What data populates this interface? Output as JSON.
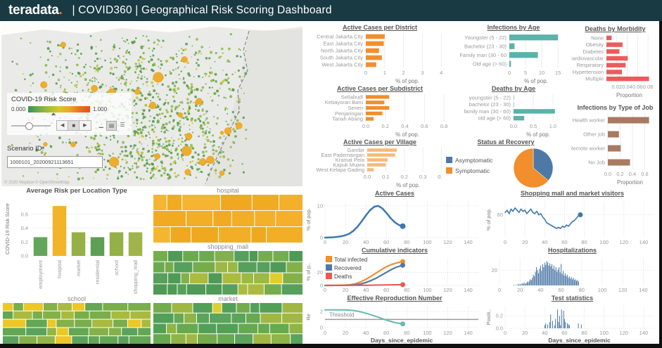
{
  "header": {
    "logo": "teradata",
    "logo_dot": ".",
    "title": "| COVID360 | Geographical Risk Scoring Dashboard"
  },
  "map": {
    "legend_title": "COVID-19 Risk Score",
    "legend_min": "0.000",
    "legend_max": "1.000",
    "scenario_label": "Scenario ID:",
    "scenario_value": "1000101_20200921113651",
    "attribution": "© 2020 Mapbox © OpenStreetMap",
    "controls": {
      "prev": "◀",
      "stop": "■",
      "next": "▶",
      "view_small": "▁",
      "view_medium": "▤",
      "view_large": "☰"
    },
    "colors": {
      "dot_green": "#5aa04c",
      "dot_hotspot": "#f0ac28"
    }
  },
  "chart_data": [
    {
      "type": "hbar",
      "title": "Active Cases per District",
      "xlabel": "% of pop.",
      "color": "#f28e2b",
      "xmax": 4.4,
      "xticks": [
        0,
        1,
        2,
        3,
        4
      ],
      "xtick_labels": [
        "0",
        "1",
        "2",
        "3",
        "4"
      ],
      "categories": [
        "Central Jakarta City",
        "East Jakarta City",
        "North Jakarta City",
        "South Jakarta City",
        "West Jakarta City"
      ],
      "values": [
        1.0,
        0.95,
        0.7,
        0.85,
        0.55
      ]
    },
    {
      "type": "hbar",
      "title": "Infections by Age",
      "xlabel": "% of pop.",
      "color": "#59b3ab",
      "xmax": 16.5,
      "xticks": [
        0,
        5,
        10,
        15
      ],
      "xtick_labels": [
        "0",
        "5",
        "10",
        "15"
      ],
      "categories": [
        "Youngster (5 - 22)",
        "Bachelor (23 - 30)",
        "Family man (30 - 60",
        "Old age (> 60)"
      ],
      "values": [
        15,
        1.6,
        8.8,
        0.5
      ]
    },
    {
      "type": "hbar",
      "title": "Deaths by Morbidity",
      "xlabel": "Proportion",
      "color": "#ec5b5b",
      "xmax": 0.088,
      "xticks": [
        0.02,
        0.04,
        0.06,
        0.08
      ],
      "xtick_labels": [
        "0.02",
        "0.04",
        "0.06",
        "0.08"
      ],
      "categories": [
        "None",
        "Obesity",
        "Diabetes",
        "Cardiovascular",
        "Respiratory",
        "Hypertension",
        "Multiple"
      ],
      "values": [
        0.01,
        0.031,
        0.025,
        0.041,
        0.037,
        0.03,
        0.082
      ]
    },
    {
      "type": "hbar",
      "title": "Active Cases per Subdistrict",
      "xlabel": "% of pop.",
      "color": "#f28e2b",
      "xmax": 0.85,
      "xticks": [
        0,
        0.2,
        0.4,
        0.6,
        0.8
      ],
      "xtick_labels": [
        "0.0",
        "0.2",
        "0.4",
        "0.6",
        "0.8"
      ],
      "categories": [
        "Setiabudi",
        "Kebayoran Baru",
        "Senen",
        "Penjaringan",
        "Tanah Abang"
      ],
      "values": [
        0.24,
        0.19,
        0.24,
        0.17,
        0.08
      ]
    },
    {
      "type": "hbar",
      "title": "Deaths by Age",
      "xlabel": "% of pop.",
      "color": "#59b3ab",
      "xmax": 1.25,
      "xticks": [
        0,
        0.5,
        1.0
      ],
      "xtick_labels": [
        "0.0",
        "0.5",
        "1.0"
      ],
      "categories": [
        "youngster (5 - 22)",
        "bachelor (23 - 30)",
        "family man (30 - 60)",
        "old age (> 60)"
      ],
      "values": [
        0.005,
        0.01,
        1.05,
        0.27
      ]
    },
    {
      "type": "hbar",
      "title": "Infections by Type of Job",
      "xlabel": "Proportion",
      "color": "#a87a61",
      "xmax": 0.72,
      "xticks": [
        0,
        0.2,
        0.4,
        0.6
      ],
      "xtick_labels": [
        "0.0",
        "0.2",
        "0.4",
        "0.6"
      ],
      "categories": [
        "Health worker",
        "Other job",
        "Remote worker",
        "No Job"
      ],
      "values": [
        0.67,
        0.18,
        0.21,
        0.36
      ]
    },
    {
      "type": "hbar",
      "title": "Active Cases per Village",
      "xlabel": "% of pop.",
      "color": "#f9b97a",
      "xmax": 0.44,
      "xticks": [
        0,
        0.1,
        0.2,
        0.3,
        0.4
      ],
      "xtick_labels": [
        "0.0",
        "0.1",
        "0.2",
        "0.3",
        "0.4"
      ],
      "categories": [
        "Gambir",
        "East Pademangan",
        "Kramat Pela",
        "Kapuk Muara",
        "West Kelapa Gading"
      ],
      "values": [
        0.16,
        0.15,
        0.11,
        0.1,
        0.035
      ]
    },
    {
      "type": "pie",
      "title": "Status at Recovery",
      "slices": [
        {
          "label": "Asymptomatic",
          "value": 36,
          "color": "#4e79a7"
        },
        {
          "label": "Symptomatic",
          "value": 64,
          "color": "#f28e2b"
        }
      ]
    },
    {
      "type": "vbar",
      "title": "Average Risk per Location Type",
      "ylabel": "COVID-19 Risk Score",
      "ymax": 0.78,
      "yticks": [
        0,
        0.2,
        0.4,
        0.6
      ],
      "ytick_labels": [
        "0.0",
        "0.2",
        "0.4",
        "0.6"
      ],
      "categories": [
        "employment",
        "hospital",
        "market",
        "residential",
        "school",
        "shopping_mall"
      ],
      "values": [
        0.27,
        0.72,
        0.34,
        0.27,
        0.34,
        0.34
      ],
      "colors": [
        "#64a55c",
        "#f2b52a",
        "#94b047",
        "#5f9f55",
        "#94b047",
        "#9fb44a"
      ]
    },
    {
      "type": "treemap",
      "title": "hospital",
      "rows": 3,
      "cols": 6,
      "accent_chance": 0,
      "palette": [
        "#f4b02a",
        "#f1ab23",
        "#f6b530",
        "#efa81f",
        "#f3ae27"
      ],
      "accent": "#f4b02a"
    },
    {
      "type": "treemap",
      "title": "shopping_mall",
      "rows": 4,
      "cols": 10,
      "accent_chance": 0.02,
      "palette": [
        "#57a05b",
        "#6cab4d",
        "#83b149",
        "#9cb845",
        "#4f9a55",
        "#76ad4b",
        "#abbb40"
      ],
      "accent": "#e2ce2b"
    },
    {
      "type": "treemap",
      "title": "school",
      "rows": 5,
      "cols": 9,
      "accent_chance": 0.13,
      "palette": [
        "#5ba35a",
        "#79ae4b",
        "#92b547",
        "#63a754",
        "#a9ba41",
        "#85b149"
      ],
      "accent": "#ecc726"
    },
    {
      "type": "treemap",
      "title": "market",
      "rows": 4,
      "cols": 9,
      "accent_chance": 0.05,
      "palette": [
        "#5aa45c",
        "#74ac4c",
        "#8fb447",
        "#a0b843",
        "#52a057",
        "#67a951"
      ],
      "accent": "#ddd02e"
    },
    {
      "type": "line",
      "title": "Active Cases",
      "ylabel": "% of pop.",
      "ymin": 0,
      "ymax": 11.5,
      "xmax": 150,
      "xticks": [
        0,
        20,
        40,
        60,
        80,
        100,
        120,
        140
      ],
      "yticks": [
        0,
        10
      ],
      "ytick_labels": [
        "0",
        "10"
      ],
      "series": [
        {
          "name": "Active",
          "color": "#3b77b0",
          "width": 2.5,
          "end_dot": true,
          "dot_r": 4,
          "points": [
            [
              0,
              0
            ],
            [
              4,
              0.05
            ],
            [
              8,
              0.12
            ],
            [
              12,
              0.25
            ],
            [
              16,
              0.45
            ],
            [
              20,
              0.75
            ],
            [
              24,
              1.3
            ],
            [
              28,
              2.2
            ],
            [
              32,
              3.5
            ],
            [
              36,
              5.2
            ],
            [
              40,
              7.0
            ],
            [
              44,
              8.6
            ],
            [
              48,
              9.7
            ],
            [
              52,
              10.0
            ],
            [
              56,
              9.2
            ],
            [
              60,
              7.8
            ],
            [
              64,
              6.2
            ],
            [
              68,
              4.9
            ],
            [
              72,
              4.0
            ],
            [
              76,
              3.6
            ]
          ]
        }
      ]
    },
    {
      "type": "line",
      "title": "Shopping mall and market visitors",
      "ylabel": "% of pop.",
      "ymin": 40,
      "ymax": 72,
      "xmax": 150,
      "xticks": [
        0,
        20,
        40,
        60,
        80,
        100,
        120,
        140
      ],
      "yticks": [
        60
      ],
      "ytick_labels": [
        "60"
      ],
      "series": [
        {
          "name": "Visitors",
          "color": "#3b77b0",
          "width": 1.6,
          "end_dot": true,
          "dot_r": 3.5,
          "points": [
            [
              0,
              62
            ],
            [
              2,
              64
            ],
            [
              4,
              61
            ],
            [
              6,
              65
            ],
            [
              8,
              63
            ],
            [
              10,
              66
            ],
            [
              12,
              64
            ],
            [
              14,
              62
            ],
            [
              16,
              65
            ],
            [
              18,
              63
            ],
            [
              20,
              64
            ],
            [
              22,
              61
            ],
            [
              24,
              63
            ],
            [
              26,
              65
            ],
            [
              28,
              62
            ],
            [
              30,
              61
            ],
            [
              32,
              63
            ],
            [
              34,
              60
            ],
            [
              36,
              61
            ],
            [
              38,
              58
            ],
            [
              40,
              56
            ],
            [
              42,
              53
            ],
            [
              44,
              52
            ],
            [
              46,
              51
            ],
            [
              48,
              50
            ],
            [
              50,
              49
            ],
            [
              52,
              48
            ],
            [
              54,
              49
            ],
            [
              56,
              48
            ],
            [
              58,
              50
            ],
            [
              60,
              49
            ],
            [
              62,
              51
            ],
            [
              64,
              50
            ],
            [
              66,
              52
            ],
            [
              68,
              54
            ],
            [
              70,
              55
            ],
            [
              72,
              57
            ],
            [
              74,
              59
            ],
            [
              76,
              60
            ]
          ]
        }
      ]
    },
    {
      "type": "line",
      "title": "Cumulative indicators",
      "ylabel": "% of p..",
      "ymin": 0,
      "ymax": 42,
      "xmax": 150,
      "legend": true,
      "xticks": [
        0,
        20,
        40,
        60,
        80,
        100,
        120,
        140
      ],
      "yticks": [
        0,
        20
      ],
      "ytick_labels": [
        "0",
        "20"
      ],
      "series": [
        {
          "name": "Total infected",
          "color": "#f28e2b",
          "width": 2.2,
          "end_dot": true,
          "dot_r": 3.5,
          "points": [
            [
              0,
              0
            ],
            [
              10,
              0.1
            ],
            [
              20,
              0.5
            ],
            [
              25,
              1.2
            ],
            [
              30,
              2.8
            ],
            [
              35,
              5.5
            ],
            [
              40,
              9.5
            ],
            [
              45,
              14
            ],
            [
              50,
              19
            ],
            [
              55,
              24
            ],
            [
              60,
              28.5
            ],
            [
              65,
              32
            ],
            [
              70,
              34.5
            ],
            [
              76,
              36.5
            ]
          ]
        },
        {
          "name": "Recovered",
          "color": "#4e79a7",
          "width": 2.2,
          "end_dot": true,
          "dot_r": 3.5,
          "points": [
            [
              0,
              0
            ],
            [
              20,
              0.1
            ],
            [
              25,
              0.4
            ],
            [
              30,
              1.0
            ],
            [
              35,
              2.2
            ],
            [
              40,
              4.5
            ],
            [
              45,
              7.5
            ],
            [
              50,
              11
            ],
            [
              55,
              15.5
            ],
            [
              60,
              20
            ],
            [
              65,
              24.5
            ],
            [
              70,
              28
            ],
            [
              76,
              31
            ]
          ]
        },
        {
          "name": "Deaths",
          "color": "#ef5552",
          "width": 2,
          "end_dot": true,
          "dot_r": 3.5,
          "points": [
            [
              0,
              0
            ],
            [
              20,
              0.05
            ],
            [
              40,
              0.3
            ],
            [
              60,
              0.8
            ],
            [
              76,
              1.2
            ]
          ]
        }
      ]
    },
    {
      "type": "bars",
      "title": "Hospitalizations",
      "ymin": 0,
      "ymax": 36,
      "xmax": 150,
      "x_start": 14,
      "color": "#4e79a7",
      "xticks": [
        0,
        20,
        40,
        60,
        80,
        100,
        120,
        140
      ],
      "yticks": [
        20
      ],
      "ytick_labels": [
        "20"
      ],
      "values": [
        1,
        0,
        1,
        0,
        2,
        1,
        2,
        1,
        3,
        2,
        4,
        2,
        3,
        5,
        4,
        6,
        8,
        7,
        10,
        14,
        12,
        18,
        24,
        20,
        16,
        22,
        26,
        19,
        28,
        24,
        30,
        27,
        32,
        30,
        26,
        29,
        25,
        28,
        22,
        26,
        20,
        24,
        18,
        21,
        24,
        17,
        28,
        15,
        19,
        13,
        16,
        12,
        14,
        10,
        12,
        9,
        11,
        8,
        10,
        7,
        8,
        6,
        7,
        5
      ]
    },
    {
      "type": "line",
      "title": "Effective Reproduction Number",
      "ylabel": "Re",
      "ymin": -0.1,
      "ymax": 2.7,
      "xmax": 150,
      "xlabel": "Days_since_epidemic",
      "threshold": 1.0,
      "threshold_label": "Threshold",
      "xticks": [
        0,
        20,
        40,
        60,
        80,
        100,
        120,
        140
      ],
      "yticks": [
        0,
        2
      ],
      "ytick_labels": [
        "0",
        "2"
      ],
      "series": [
        {
          "name": "Re",
          "color": "#66b8b0",
          "width": 2,
          "end_dot": true,
          "dot_r": 3.5,
          "points": [
            [
              0,
              2.2
            ],
            [
              10,
              2.2
            ],
            [
              20,
              2.2
            ],
            [
              28,
              2.12
            ],
            [
              36,
              1.92
            ],
            [
              44,
              1.62
            ],
            [
              52,
              1.28
            ],
            [
              60,
              0.92
            ],
            [
              68,
              0.62
            ],
            [
              76,
              0.45
            ]
          ]
        }
      ]
    },
    {
      "type": "bars",
      "title": "Test statistics",
      "ylabel": "Positi..",
      "ymin": 0,
      "ymax": 0.36,
      "xmax": 150,
      "x_start": 40,
      "color": "#4e79a7",
      "xlabel": "Days_since_epidemic",
      "xticks": [
        0,
        20,
        40,
        60,
        80,
        100,
        120,
        140
      ],
      "yticks": [
        0,
        0.2
      ],
      "ytick_labels": [
        "0.0",
        "0.2"
      ],
      "values": [
        0.05,
        0.08,
        0,
        0.06,
        0,
        0.1,
        0.22,
        0,
        0.12,
        0,
        0.05,
        0.15,
        0,
        0.3,
        0.1,
        0.2,
        0.05,
        0.3,
        0,
        0.28,
        0.15,
        0.1,
        0,
        0.08,
        0.06,
        0.05,
        0,
        0,
        0,
        0,
        0,
        0,
        0,
        0,
        0.08,
        0,
        0,
        0.06
      ]
    }
  ]
}
